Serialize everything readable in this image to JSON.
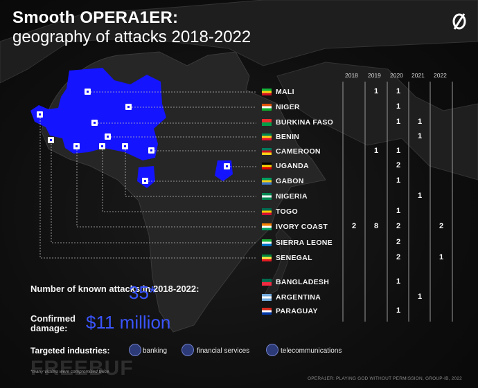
{
  "title": {
    "line1": "Smooth OPERA1ER:",
    "line2": "geography of attacks 2018-2022"
  },
  "logo_icon": "slashed-zero-icon",
  "years": [
    "2018",
    "2019",
    "2020",
    "2021",
    "2022"
  ],
  "countries": [
    {
      "name": "MALI",
      "flag": [
        "#14b53a",
        "#fcd116",
        "#ce1126"
      ],
      "counts": [
        "",
        "1",
        "1",
        "",
        ""
      ]
    },
    {
      "name": "NIGER",
      "flag": [
        "#e05206",
        "#ffffff",
        "#0db02b"
      ],
      "counts": [
        "",
        "",
        "1",
        "",
        ""
      ]
    },
    {
      "name": "BURKINA FASO",
      "flag": [
        "#ef2b2d",
        "#009e49"
      ],
      "counts": [
        "",
        "",
        "1",
        "1",
        ""
      ]
    },
    {
      "name": "BENIN",
      "flag": [
        "#008751",
        "#fcd116",
        "#e8112d"
      ],
      "counts": [
        "",
        "",
        "",
        "1",
        ""
      ]
    },
    {
      "name": "CAMEROON",
      "flag": [
        "#007a5e",
        "#ce1126",
        "#fcd116"
      ],
      "counts": [
        "",
        "1",
        "1",
        "",
        ""
      ]
    },
    {
      "name": "UGANDA",
      "flag": [
        "#000000",
        "#fcdc04",
        "#d90000"
      ],
      "counts": [
        "",
        "",
        "2",
        "",
        ""
      ]
    },
    {
      "name": "GABON",
      "flag": [
        "#009e60",
        "#fcd116",
        "#3a75c4"
      ],
      "counts": [
        "",
        "",
        "1",
        "",
        ""
      ]
    },
    {
      "name": "NIGERIA",
      "flag": [
        "#008751",
        "#ffffff",
        "#008751"
      ],
      "counts": [
        "",
        "",
        "",
        "1",
        ""
      ]
    },
    {
      "name": "TOGO",
      "flag": [
        "#006a4e",
        "#ffce00",
        "#d21034"
      ],
      "counts": [
        "",
        "",
        "1",
        "",
        ""
      ]
    },
    {
      "name": "IVORY COAST",
      "flag": [
        "#f77f00",
        "#ffffff",
        "#009e60"
      ],
      "counts": [
        "2",
        "8",
        "2",
        "",
        "2"
      ]
    },
    {
      "name": "SIERRA LEONE",
      "flag": [
        "#1eb53a",
        "#ffffff",
        "#0072c6"
      ],
      "counts": [
        "",
        "",
        "2",
        "",
        ""
      ]
    },
    {
      "name": "SENEGAL",
      "flag": [
        "#00853f",
        "#fdef42",
        "#e31b23"
      ],
      "counts": [
        "",
        "",
        "2",
        "",
        "1"
      ]
    },
    {
      "name": "BANGLADESH",
      "flag": [
        "#006a4e",
        "#f42a41"
      ],
      "counts": [
        "",
        "",
        "1",
        "",
        ""
      ]
    },
    {
      "name": "ARGENTINA",
      "flag": [
        "#74acdf",
        "#ffffff",
        "#74acdf"
      ],
      "counts": [
        "",
        "",
        "",
        "1",
        ""
      ]
    },
    {
      "name": "PARAGUAY",
      "flag": [
        "#d52b1e",
        "#ffffff",
        "#0038a8"
      ],
      "counts": [
        "",
        "",
        "1",
        "",
        ""
      ]
    }
  ],
  "stats": {
    "attacks_label": "Number of known attacks in 2018-2022:",
    "attacks_value": "35*",
    "damage_label": "Confirmed damage:",
    "damage_value": "$11 million"
  },
  "industries": {
    "title": "Targeted industries:",
    "items": [
      {
        "label": "banking",
        "icon": "bank-icon"
      },
      {
        "label": "financial services",
        "icon": "coin-icon"
      },
      {
        "label": "telecommunications",
        "icon": "globe-icon"
      }
    ]
  },
  "footnote": "*many victims were compromised twice",
  "source": "OPERA1ER: PLAYING GOD WITHOUT PERMISSION, GROUP-IB, 2022",
  "watermark": "FREEBUF",
  "colors": {
    "highlight": "#1414ff",
    "accent_text": "#3a55ff",
    "background": "#0b0b0b",
    "land": "#242424"
  }
}
